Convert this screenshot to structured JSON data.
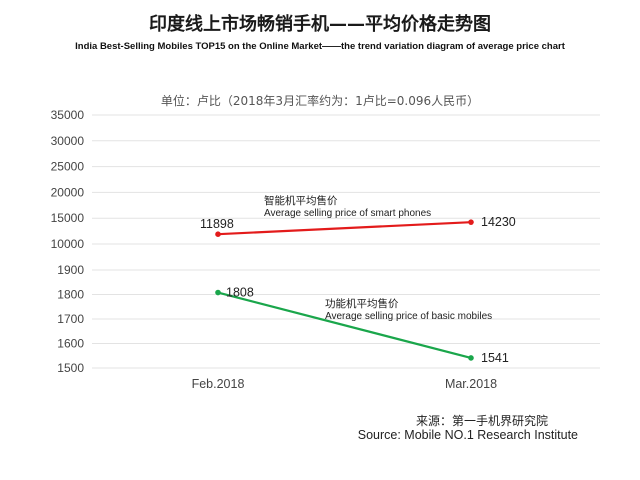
{
  "header": {
    "title": "印度线上市场畅销手机——平均价格走势图",
    "subtitle": "India Best-Selling  Mobiles TOP15 on the Online Market——the trend variation diagram of average price chart",
    "unit_note": "单位：卢比（2018年3月汇率约为：1卢比=0.096人民币）"
  },
  "chart_data": {
    "type": "line",
    "categories": [
      "Feb.2018",
      "Mar.2018"
    ],
    "upper_axis": {
      "ticks": [
        10000,
        15000,
        20000,
        25000,
        30000,
        35000
      ],
      "range": [
        10000,
        35000
      ]
    },
    "lower_axis": {
      "ticks": [
        1500,
        1600,
        1700,
        1800,
        1900
      ],
      "range": [
        1500,
        1900
      ]
    },
    "grid": true,
    "series": [
      {
        "name_cn": "智能机平均售价",
        "name_en": "Average selling price of smart phones",
        "values": [
          11898,
          14230
        ],
        "axis": "upper",
        "color": "#e31b1b"
      },
      {
        "name_cn": "功能机平均售价",
        "name_en": "Average selling price of basic mobiles",
        "values": [
          1808,
          1541
        ],
        "axis": "lower",
        "color": "#1aa64b"
      }
    ]
  },
  "footer": {
    "source_cn": "来源：第一手机界研究院",
    "source_en": "Source: Mobile NO.1 Research Institute"
  }
}
